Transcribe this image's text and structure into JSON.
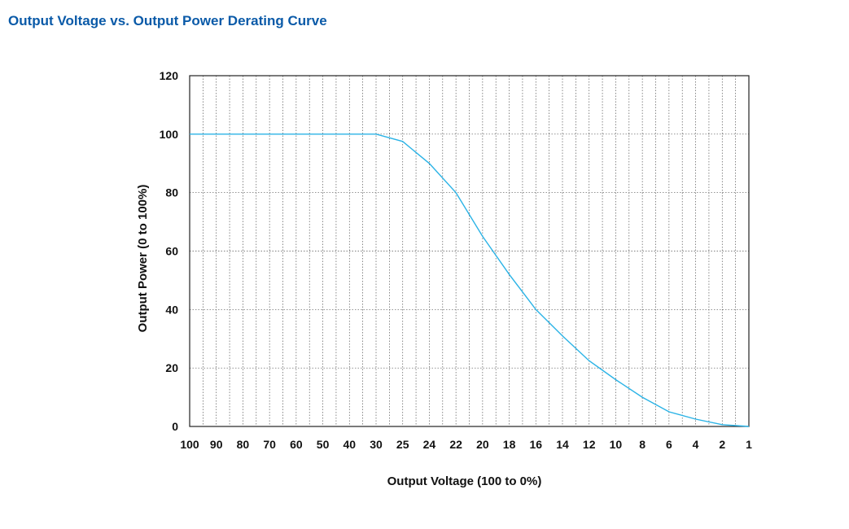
{
  "chart_data": {
    "type": "line",
    "title": "Output Voltage vs. Output Power Derating Curve",
    "xlabel": "Output Voltage (100 to 0%)",
    "ylabel": "Output Power  (0 to 100%)",
    "x_categories": [
      "100",
      "90",
      "80",
      "70",
      "60",
      "50",
      "40",
      "30",
      "25",
      "24",
      "22",
      "20",
      "18",
      "16",
      "14",
      "12",
      "10",
      "8",
      "6",
      "4",
      "2",
      "1"
    ],
    "y_ticks": [
      "0",
      "20",
      "40",
      "60",
      "80",
      "100",
      "120"
    ],
    "ylim": [
      0,
      120
    ],
    "grid": true,
    "colors": {
      "series": "#2bb3e6",
      "title": "#0a5aa8",
      "grid": "#555555"
    },
    "series": [
      {
        "values": [
          100,
          100,
          100,
          100,
          100,
          100,
          100,
          100,
          97.5,
          90,
          80,
          65,
          52,
          40,
          31,
          22.5,
          16,
          10,
          5,
          2.5,
          0.6,
          0
        ]
      }
    ]
  }
}
